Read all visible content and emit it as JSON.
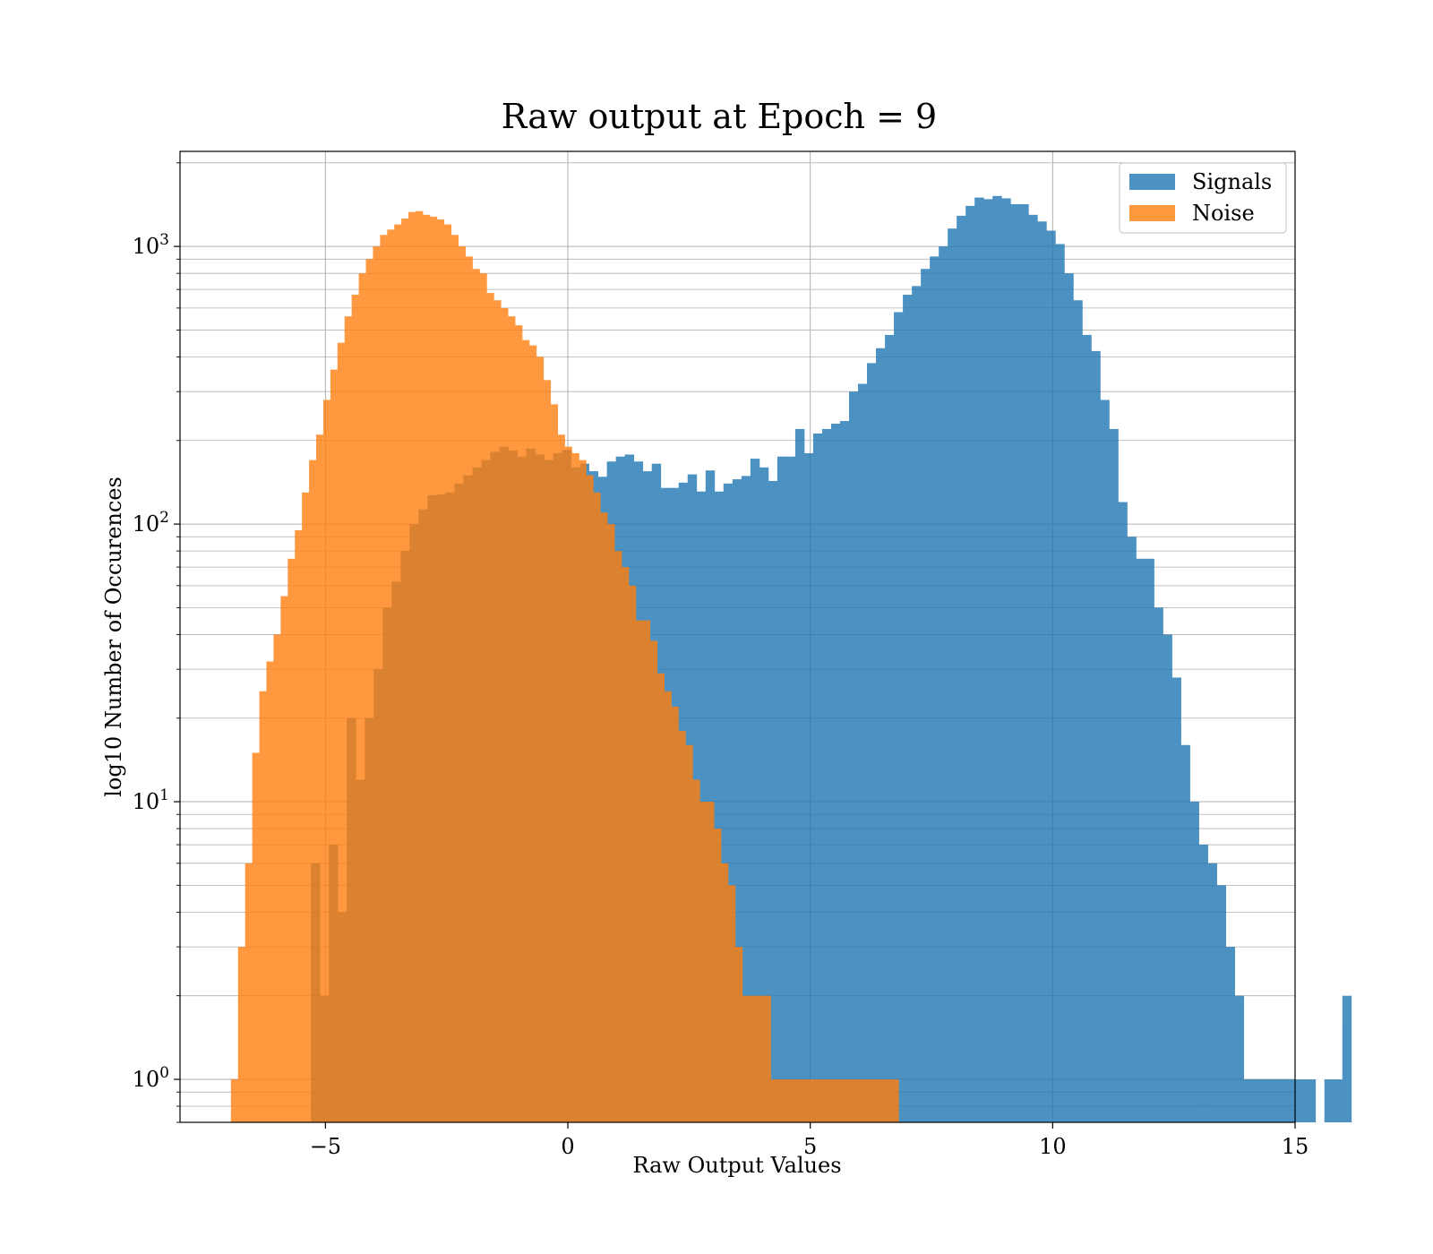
{
  "chart_data": {
    "type": "histogram",
    "title": "Raw output at Epoch = 9",
    "xlabel": "Raw Output Values",
    "ylabel": "log10 Number of Occurences",
    "xlim": [
      -8,
      15
    ],
    "ylim": [
      0.7,
      2200
    ],
    "yscale": "log",
    "grid": true,
    "legend_position": "top-right",
    "xticks": [
      -5,
      0,
      5,
      10,
      15
    ],
    "xtick_labels": [
      "−5",
      "0",
      "5",
      "10",
      "15"
    ],
    "yticks": [
      {
        "value": 1,
        "mantissa": "10",
        "exponent": "0"
      },
      {
        "value": 10,
        "mantissa": "10",
        "exponent": "1"
      },
      {
        "value": 100,
        "mantissa": "10",
        "exponent": "2"
      },
      {
        "value": 1000,
        "mantissa": "10",
        "exponent": "3"
      }
    ],
    "series": [
      {
        "name": "Signals",
        "color": "#1f77b4",
        "opacity": 0.8,
        "bin_start": -5.3,
        "bin_width": 0.185,
        "counts": [
          6,
          2,
          7,
          4,
          20,
          12,
          20,
          30,
          50,
          62,
          80,
          100,
          113,
          127,
          128,
          130,
          140,
          150,
          160,
          170,
          182,
          190,
          184,
          175,
          187,
          178,
          170,
          180,
          185,
          160,
          165,
          155,
          148,
          168,
          175,
          178,
          168,
          155,
          165,
          135,
          135,
          141,
          151,
          131,
          156,
          131,
          140,
          145,
          149,
          172,
          160,
          143,
          175,
          175,
          220,
          180,
          212,
          220,
          230,
          235,
          300,
          320,
          380,
          430,
          480,
          580,
          670,
          720,
          830,
          920,
          1000,
          1160,
          1290,
          1400,
          1500,
          1480,
          1520,
          1490,
          1420,
          1420,
          1300,
          1230,
          1140,
          1020,
          800,
          640,
          480,
          420,
          280,
          220,
          120,
          90,
          75,
          75,
          50,
          40,
          28,
          16,
          10,
          7,
          6,
          5,
          3,
          2,
          1,
          1,
          1,
          1,
          1,
          1,
          1,
          1,
          0,
          1,
          1,
          2
        ]
      },
      {
        "name": "Noise",
        "color": "#ff7f0e",
        "opacity": 0.8,
        "bin_start": -6.95,
        "bin_width": 0.1465,
        "counts": [
          1,
          3,
          6,
          15,
          25,
          32,
          40,
          55,
          75,
          95,
          130,
          170,
          210,
          280,
          360,
          450,
          560,
          670,
          800,
          900,
          1000,
          1100,
          1150,
          1200,
          1260,
          1330,
          1340,
          1300,
          1280,
          1250,
          1200,
          1100,
          1000,
          920,
          830,
          800,
          680,
          640,
          600,
          560,
          520,
          460,
          440,
          400,
          330,
          270,
          210,
          190,
          180,
          170,
          150,
          130,
          110,
          100,
          80,
          70,
          60,
          45,
          45,
          38,
          29,
          25,
          22,
          18,
          16,
          12,
          10,
          10,
          8,
          6,
          5,
          3,
          2,
          2,
          2,
          2,
          1,
          1,
          1,
          1,
          1,
          1,
          1,
          1,
          1,
          1,
          1,
          1,
          1,
          1,
          1,
          1,
          1,
          1
        ]
      }
    ]
  }
}
